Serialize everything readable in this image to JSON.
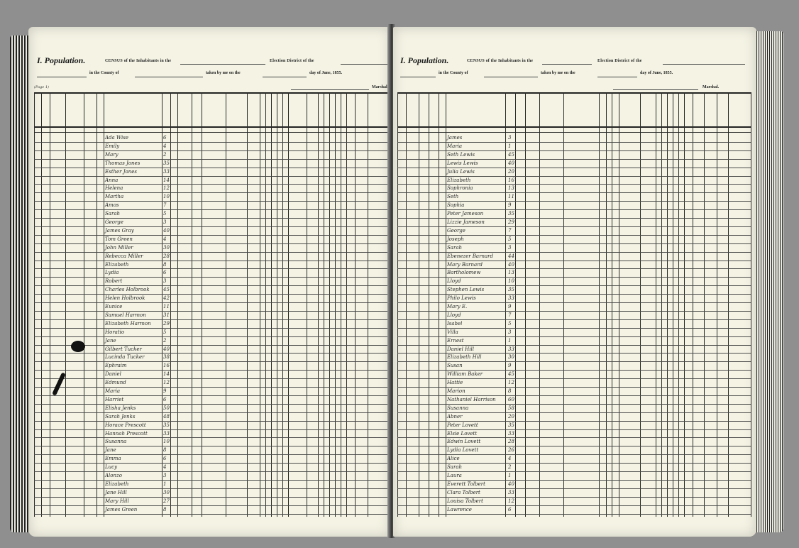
{
  "left_page": {
    "title": "I. Population.",
    "census_line": "CENSUS of the Inhabitants in the",
    "district_line": "Election District of the",
    "county_line": "in the County of",
    "taken_line": "taken by me on the",
    "date_line": "day of June, 1855.",
    "marshal_label": "Marshal.",
    "page_number": "(Page 1)",
    "entries": [
      {
        "n": "Ada Wise",
        "a": "6"
      },
      {
        "n": "Emily",
        "a": "4"
      },
      {
        "n": "Mary",
        "a": "2"
      },
      {
        "n": "Thomas Jones",
        "a": "35"
      },
      {
        "n": "Esther Jones",
        "a": "33"
      },
      {
        "n": "Anna",
        "a": "14"
      },
      {
        "n": "Helena",
        "a": "12"
      },
      {
        "n": "Martha",
        "a": "10"
      },
      {
        "n": "Amos",
        "a": "7"
      },
      {
        "n": "Sarah",
        "a": "5"
      },
      {
        "n": "George",
        "a": "3"
      },
      {
        "n": "James Gray",
        "a": "40"
      },
      {
        "n": "Tom Green",
        "a": "4"
      },
      {
        "n": "John Miller",
        "a": "30"
      },
      {
        "n": "Rebecca Miller",
        "a": "28"
      },
      {
        "n": "Elizabeth",
        "a": "8"
      },
      {
        "n": "Lydia",
        "a": "6"
      },
      {
        "n": "Robert",
        "a": "3"
      },
      {
        "n": "Charles Holbrook",
        "a": "45"
      },
      {
        "n": "Helen Holbrook",
        "a": "42"
      },
      {
        "n": "Eunice",
        "a": "11"
      },
      {
        "n": "Samuel Harmon",
        "a": "31"
      },
      {
        "n": "Elizabeth Harmon",
        "a": "29"
      },
      {
        "n": "Horatio",
        "a": "5"
      },
      {
        "n": "Jane",
        "a": "2"
      },
      {
        "n": "Gilbert Tucker",
        "a": "40"
      },
      {
        "n": "Lucinda Tucker",
        "a": "38"
      },
      {
        "n": "Ephraim",
        "a": "16"
      },
      {
        "n": "Daniel",
        "a": "14"
      },
      {
        "n": "Edmund",
        "a": "12"
      },
      {
        "n": "Maria",
        "a": "9"
      },
      {
        "n": "Harriet",
        "a": "6"
      },
      {
        "n": "Elisha Jenks",
        "a": "50"
      },
      {
        "n": "Sarah Jenks",
        "a": "48"
      },
      {
        "n": "Horace Prescott",
        "a": "35"
      },
      {
        "n": "Hannah Prescott",
        "a": "33"
      },
      {
        "n": "Susanna",
        "a": "10"
      },
      {
        "n": "Jane",
        "a": "8"
      },
      {
        "n": "Emma",
        "a": "6"
      },
      {
        "n": "Lucy",
        "a": "4"
      },
      {
        "n": "Alonzo",
        "a": "3"
      },
      {
        "n": "Elizabeth",
        "a": "1"
      },
      {
        "n": "Jane Hill",
        "a": "30"
      },
      {
        "n": "Mary Hill",
        "a": "27"
      },
      {
        "n": "James Green",
        "a": "8"
      }
    ]
  },
  "right_page": {
    "title": "I. Population.",
    "census_line": "CENSUS of the Inhabitants in the",
    "district_line": "Election District of the",
    "county_line": "in the County of",
    "taken_line": "taken by me on the",
    "date_line": "day of June, 1855.",
    "marshal_label": "Marshal.",
    "entries": [
      {
        "n": "James",
        "a": "3"
      },
      {
        "n": "Maria",
        "a": "1"
      },
      {
        "n": "Seth Lewis",
        "a": "45"
      },
      {
        "n": "Lewis Lewis",
        "a": "40"
      },
      {
        "n": "Julia Lewis",
        "a": "20"
      },
      {
        "n": "Elizabeth",
        "a": "16"
      },
      {
        "n": "Sophronia",
        "a": "13"
      },
      {
        "n": "Seth",
        "a": "11"
      },
      {
        "n": "Sophia",
        "a": "9"
      },
      {
        "n": "Peter Jameson",
        "a": "35"
      },
      {
        "n": "Lizzie Jameson",
        "a": "29"
      },
      {
        "n": "George",
        "a": "7"
      },
      {
        "n": "Joseph",
        "a": "5"
      },
      {
        "n": "Sarah",
        "a": "3"
      },
      {
        "n": "Ebenezer Barnard",
        "a": "44"
      },
      {
        "n": "Mary Barnard",
        "a": "40"
      },
      {
        "n": "Bartholomew",
        "a": "13"
      },
      {
        "n": "Lloyd",
        "a": "10"
      },
      {
        "n": "Stephen Lewis",
        "a": "35"
      },
      {
        "n": "Philo Lewis",
        "a": "33"
      },
      {
        "n": "Mary E.",
        "a": "9"
      },
      {
        "n": "Lloyd",
        "a": "7"
      },
      {
        "n": "Isabel",
        "a": "5"
      },
      {
        "n": "Villa",
        "a": "3"
      },
      {
        "n": "Ernest",
        "a": "1"
      },
      {
        "n": "Daniel Hill",
        "a": "33"
      },
      {
        "n": "Elizabeth Hill",
        "a": "30"
      },
      {
        "n": "Susan",
        "a": "9"
      },
      {
        "n": "William Baker",
        "a": "45"
      },
      {
        "n": "Hattie",
        "a": "12"
      },
      {
        "n": "Marion",
        "a": "8"
      },
      {
        "n": "Nathaniel Harrison",
        "a": "60"
      },
      {
        "n": "Susanna",
        "a": "58"
      },
      {
        "n": "Abner",
        "a": "20"
      },
      {
        "n": "Peter Lovett",
        "a": "35"
      },
      {
        "n": "Elsie Lovett",
        "a": "33"
      },
      {
        "n": "Edwin Lovett",
        "a": "28"
      },
      {
        "n": "Lydia Lovett",
        "a": "26"
      },
      {
        "n": "Alice",
        "a": "4"
      },
      {
        "n": "Sarah",
        "a": "2"
      },
      {
        "n": "Laura",
        "a": "1"
      },
      {
        "n": "Everett Tolbert",
        "a": "40"
      },
      {
        "n": "Clara Tolbert",
        "a": "33"
      },
      {
        "n": "Louisa Tolbert",
        "a": "12"
      },
      {
        "n": "Lawrence",
        "a": "6"
      }
    ]
  }
}
